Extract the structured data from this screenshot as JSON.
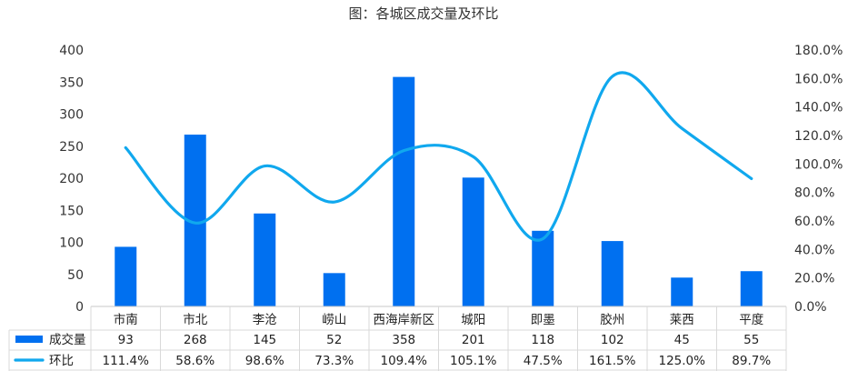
{
  "chart_data": {
    "type": "bar+line",
    "title": "图：各城区成交量及环比",
    "categories": [
      "市南",
      "市北",
      "李沧",
      "崂山",
      "西海岸新区",
      "城阳",
      "即墨",
      "胶州",
      "莱西",
      "平度"
    ],
    "series": [
      {
        "name": "成交量",
        "type": "bar",
        "axis": "left",
        "values": [
          93,
          268,
          145,
          52,
          358,
          201,
          118,
          102,
          45,
          55
        ],
        "display": [
          "93",
          "268",
          "145",
          "52",
          "358",
          "201",
          "118",
          "102",
          "45",
          "55"
        ],
        "color": "#0070f0"
      },
      {
        "name": "环比",
        "type": "line",
        "axis": "right",
        "values": [
          111.4,
          58.6,
          98.6,
          73.3,
          109.4,
          105.1,
          47.5,
          161.5,
          125.0,
          89.7
        ],
        "display": [
          "111.4%",
          "58.6%",
          "98.6%",
          "73.3%",
          "109.4%",
          "105.1%",
          "47.5%",
          "161.5%",
          "125.0%",
          "89.7%"
        ],
        "color": "#10a8ee"
      }
    ],
    "left_axis": {
      "ylim": [
        0,
        400
      ],
      "ticks": [
        "0",
        "50",
        "100",
        "150",
        "200",
        "250",
        "300",
        "350",
        "400"
      ]
    },
    "right_axis": {
      "ylim": [
        0,
        180
      ],
      "ticks": [
        "0.0%",
        "20.0%",
        "40.0%",
        "60.0%",
        "80.0%",
        "100.0%",
        "120.0%",
        "140.0%",
        "160.0%",
        "180.0%"
      ]
    },
    "grid": false,
    "legend": "data-table-bottom"
  }
}
